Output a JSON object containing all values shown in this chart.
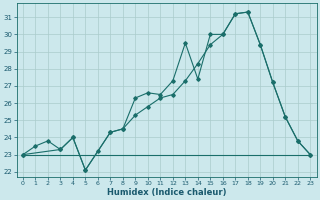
{
  "xlabel": "Humidex (Indice chaleur)",
  "bg_color": "#cce8ec",
  "grid_color": "#aacccc",
  "line_color": "#1a6e6a",
  "xlim": [
    -0.5,
    23.5
  ],
  "ylim": [
    21.7,
    31.8
  ],
  "xticks": [
    0,
    1,
    2,
    3,
    4,
    5,
    6,
    7,
    8,
    9,
    10,
    11,
    12,
    13,
    14,
    15,
    16,
    17,
    18,
    19,
    20,
    21,
    22,
    23
  ],
  "yticks": [
    22,
    23,
    24,
    25,
    26,
    27,
    28,
    29,
    30,
    31
  ],
  "line1_x": [
    0,
    1,
    2,
    3,
    4,
    5,
    6,
    7,
    8,
    9,
    10,
    11,
    12,
    13,
    14,
    15,
    16,
    17,
    18,
    19,
    20,
    21,
    22,
    23
  ],
  "line1_y": [
    23,
    23.5,
    23.8,
    23.3,
    24.0,
    22.1,
    23.2,
    24.3,
    24.5,
    26.3,
    26.6,
    26.5,
    27.3,
    29.5,
    27.4,
    30.0,
    30.0,
    31.2,
    31.3,
    29.4,
    27.2,
    25.2,
    23.8,
    23.0
  ],
  "line2_x": [
    0,
    5,
    22,
    23
  ],
  "line2_y": [
    23,
    23,
    23,
    23
  ],
  "line3_x": [
    0,
    3,
    4,
    5,
    7,
    8,
    9,
    10,
    11,
    12,
    13,
    14,
    15,
    16,
    17,
    18,
    19,
    20,
    21,
    22,
    23
  ],
  "line3_y": [
    23,
    23.3,
    24.0,
    22.1,
    24.3,
    24.5,
    25.3,
    25.8,
    26.3,
    26.5,
    27.3,
    28.3,
    29.4,
    30.0,
    31.2,
    31.3,
    29.4,
    27.2,
    25.2,
    23.8,
    23.0
  ],
  "xticklabels": [
    "0",
    "1",
    "2",
    "3",
    "4",
    "5",
    "6",
    "7",
    "8",
    "9",
    "10",
    "11",
    "12",
    "13",
    "14",
    "15",
    "16",
    "17",
    "18",
    "19",
    "20",
    "21",
    "22",
    "23"
  ]
}
